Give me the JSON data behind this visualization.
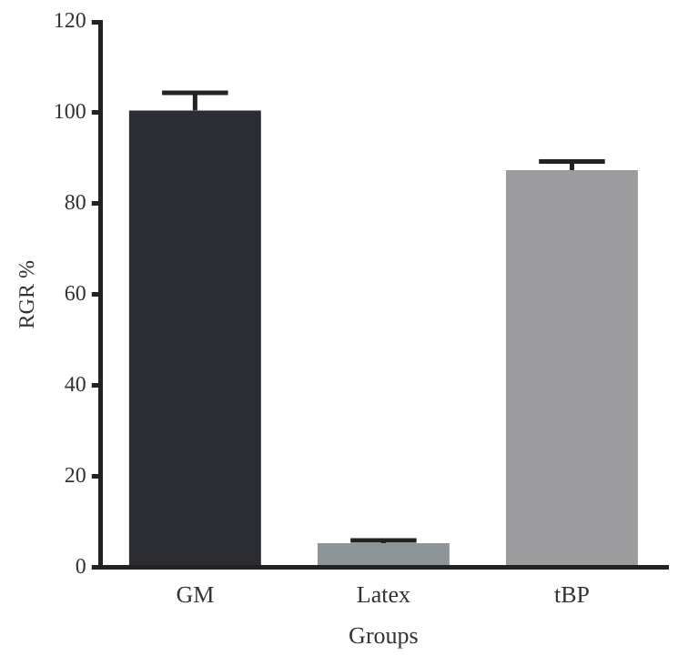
{
  "chart_data": {
    "type": "bar",
    "xlabel": "Groups",
    "ylabel": "RGR %",
    "categories": [
      "GM",
      "Latex",
      "tBP"
    ],
    "values": [
      100.5,
      5.3,
      87.4
    ],
    "errors": [
      3.9,
      0.6,
      1.9
    ],
    "colors": [
      "#2b2d33",
      "#8c9597",
      "#9c9c9e"
    ],
    "ylim": [
      0,
      120
    ],
    "yticks": [
      0,
      20,
      40,
      60,
      80,
      100,
      120
    ],
    "grid": false,
    "legend": false
  }
}
